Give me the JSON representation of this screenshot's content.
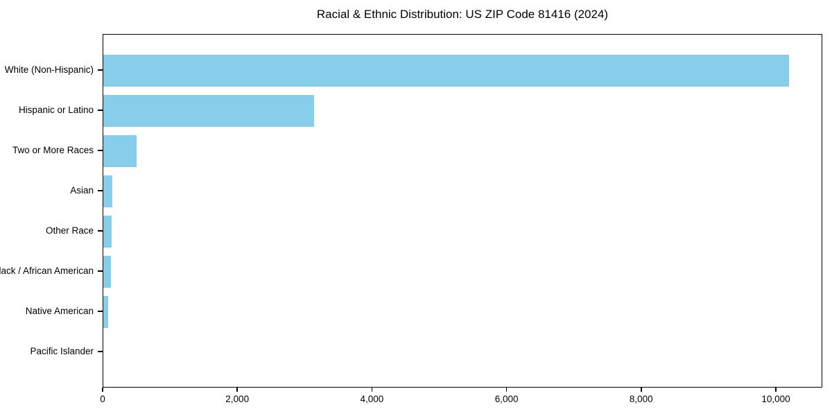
{
  "chart_data": {
    "type": "bar",
    "orientation": "horizontal",
    "title": "Racial & Ethnic Distribution: US ZIP Code 81416 (2024)",
    "categories": [
      "White (Non-Hispanic)",
      "Hispanic or Latino",
      "Two or More Races",
      "Asian",
      "Other Race",
      "Black / African American",
      "Native American",
      "Pacific Islander"
    ],
    "values": [
      10200,
      3140,
      495,
      130,
      125,
      110,
      75,
      0
    ],
    "xlabel": "",
    "ylabel": "",
    "xlim": [
      0,
      10690
    ],
    "x_ticks": [
      0,
      2000,
      4000,
      6000,
      8000,
      10000
    ],
    "x_tick_labels": [
      "0",
      "2,000",
      "4,000",
      "6,000",
      "8,000",
      "10,000"
    ],
    "bar_color": "#87CEEB",
    "text_color": "#000000",
    "grid": false,
    "legend": null
  }
}
